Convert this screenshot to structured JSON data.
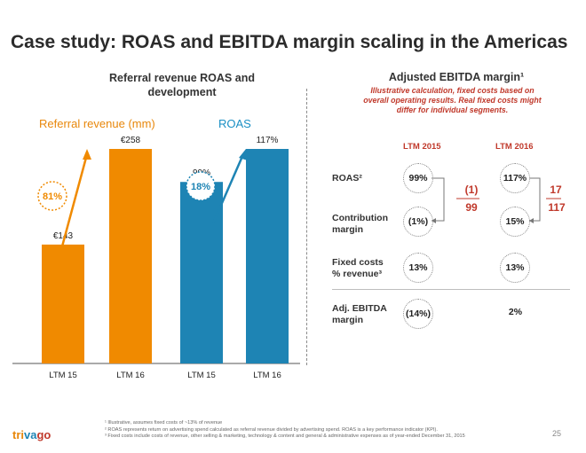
{
  "title": "Case study: ROAS and EBITDA margin scaling in the Americas",
  "left": {
    "subtitle": "Referral revenue ROAS and development",
    "referral_label": "Referral revenue (mm)",
    "roas_label": "ROAS",
    "referral_growth": "81%",
    "roas_growth": "18%"
  },
  "chart_data": [
    {
      "type": "bar",
      "title": "Referral revenue (mm)",
      "categories": [
        "LTM 15",
        "LTM 16"
      ],
      "values": [
        143,
        258
      ],
      "value_labels": [
        "€143",
        "€258"
      ],
      "color": "#f08a00",
      "ylim": [
        0,
        258
      ]
    },
    {
      "type": "bar",
      "title": "ROAS",
      "categories": [
        "LTM 15",
        "LTM 16"
      ],
      "values": [
        99,
        117
      ],
      "value_labels": [
        "99%",
        "117%"
      ],
      "color": "#1e84b4",
      "ylim": [
        0,
        117
      ]
    }
  ],
  "right": {
    "title": "Adjusted EBITDA margin¹",
    "subtitle": "Illustrative calculation, fixed costs based on overall operating results. Real fixed costs might differ for individual segments.",
    "col_2015": "LTM 2015",
    "col_2016": "LTM 2016",
    "rows": {
      "roas": {
        "label": "ROAS²",
        "v2015": "99%",
        "v2016": "117%"
      },
      "contribution": {
        "label1": "Contribution",
        "label2": "margin",
        "v2015": "(1%)",
        "v2016": "15%"
      },
      "fixed": {
        "label1": "Fixed costs",
        "label2": "% revenue³",
        "v2015": "13%",
        "v2016": "13%"
      },
      "ebitda": {
        "label1": "Adj. EBITDA",
        "label2": "margin",
        "v2015": "(14%)",
        "v2016": "2%"
      }
    },
    "frac_2015": {
      "num": "(1)",
      "den": "99"
    },
    "frac_2016": {
      "num": "17",
      "den": "117"
    }
  },
  "footnotes": {
    "f1": "¹ Illustrative, assumes fixed costs of ~13% of revenue",
    "f2": "² ROAS represents return on advertising spend calculated as referral revenue divided by advertising spend. ROAS is a key performance indicator (KPI).",
    "f3": "³ Fixed costs include costs of revenue, other selling & marketing, technology & content and general & administrative expenses as of year-ended December 31, 2015"
  },
  "logo": {
    "part1": "tri",
    "part2": "va",
    "part3": "go"
  },
  "page_number": "25",
  "colors": {
    "orange": "#f08a00",
    "blue": "#1e84b4",
    "red": "#c0392b"
  }
}
